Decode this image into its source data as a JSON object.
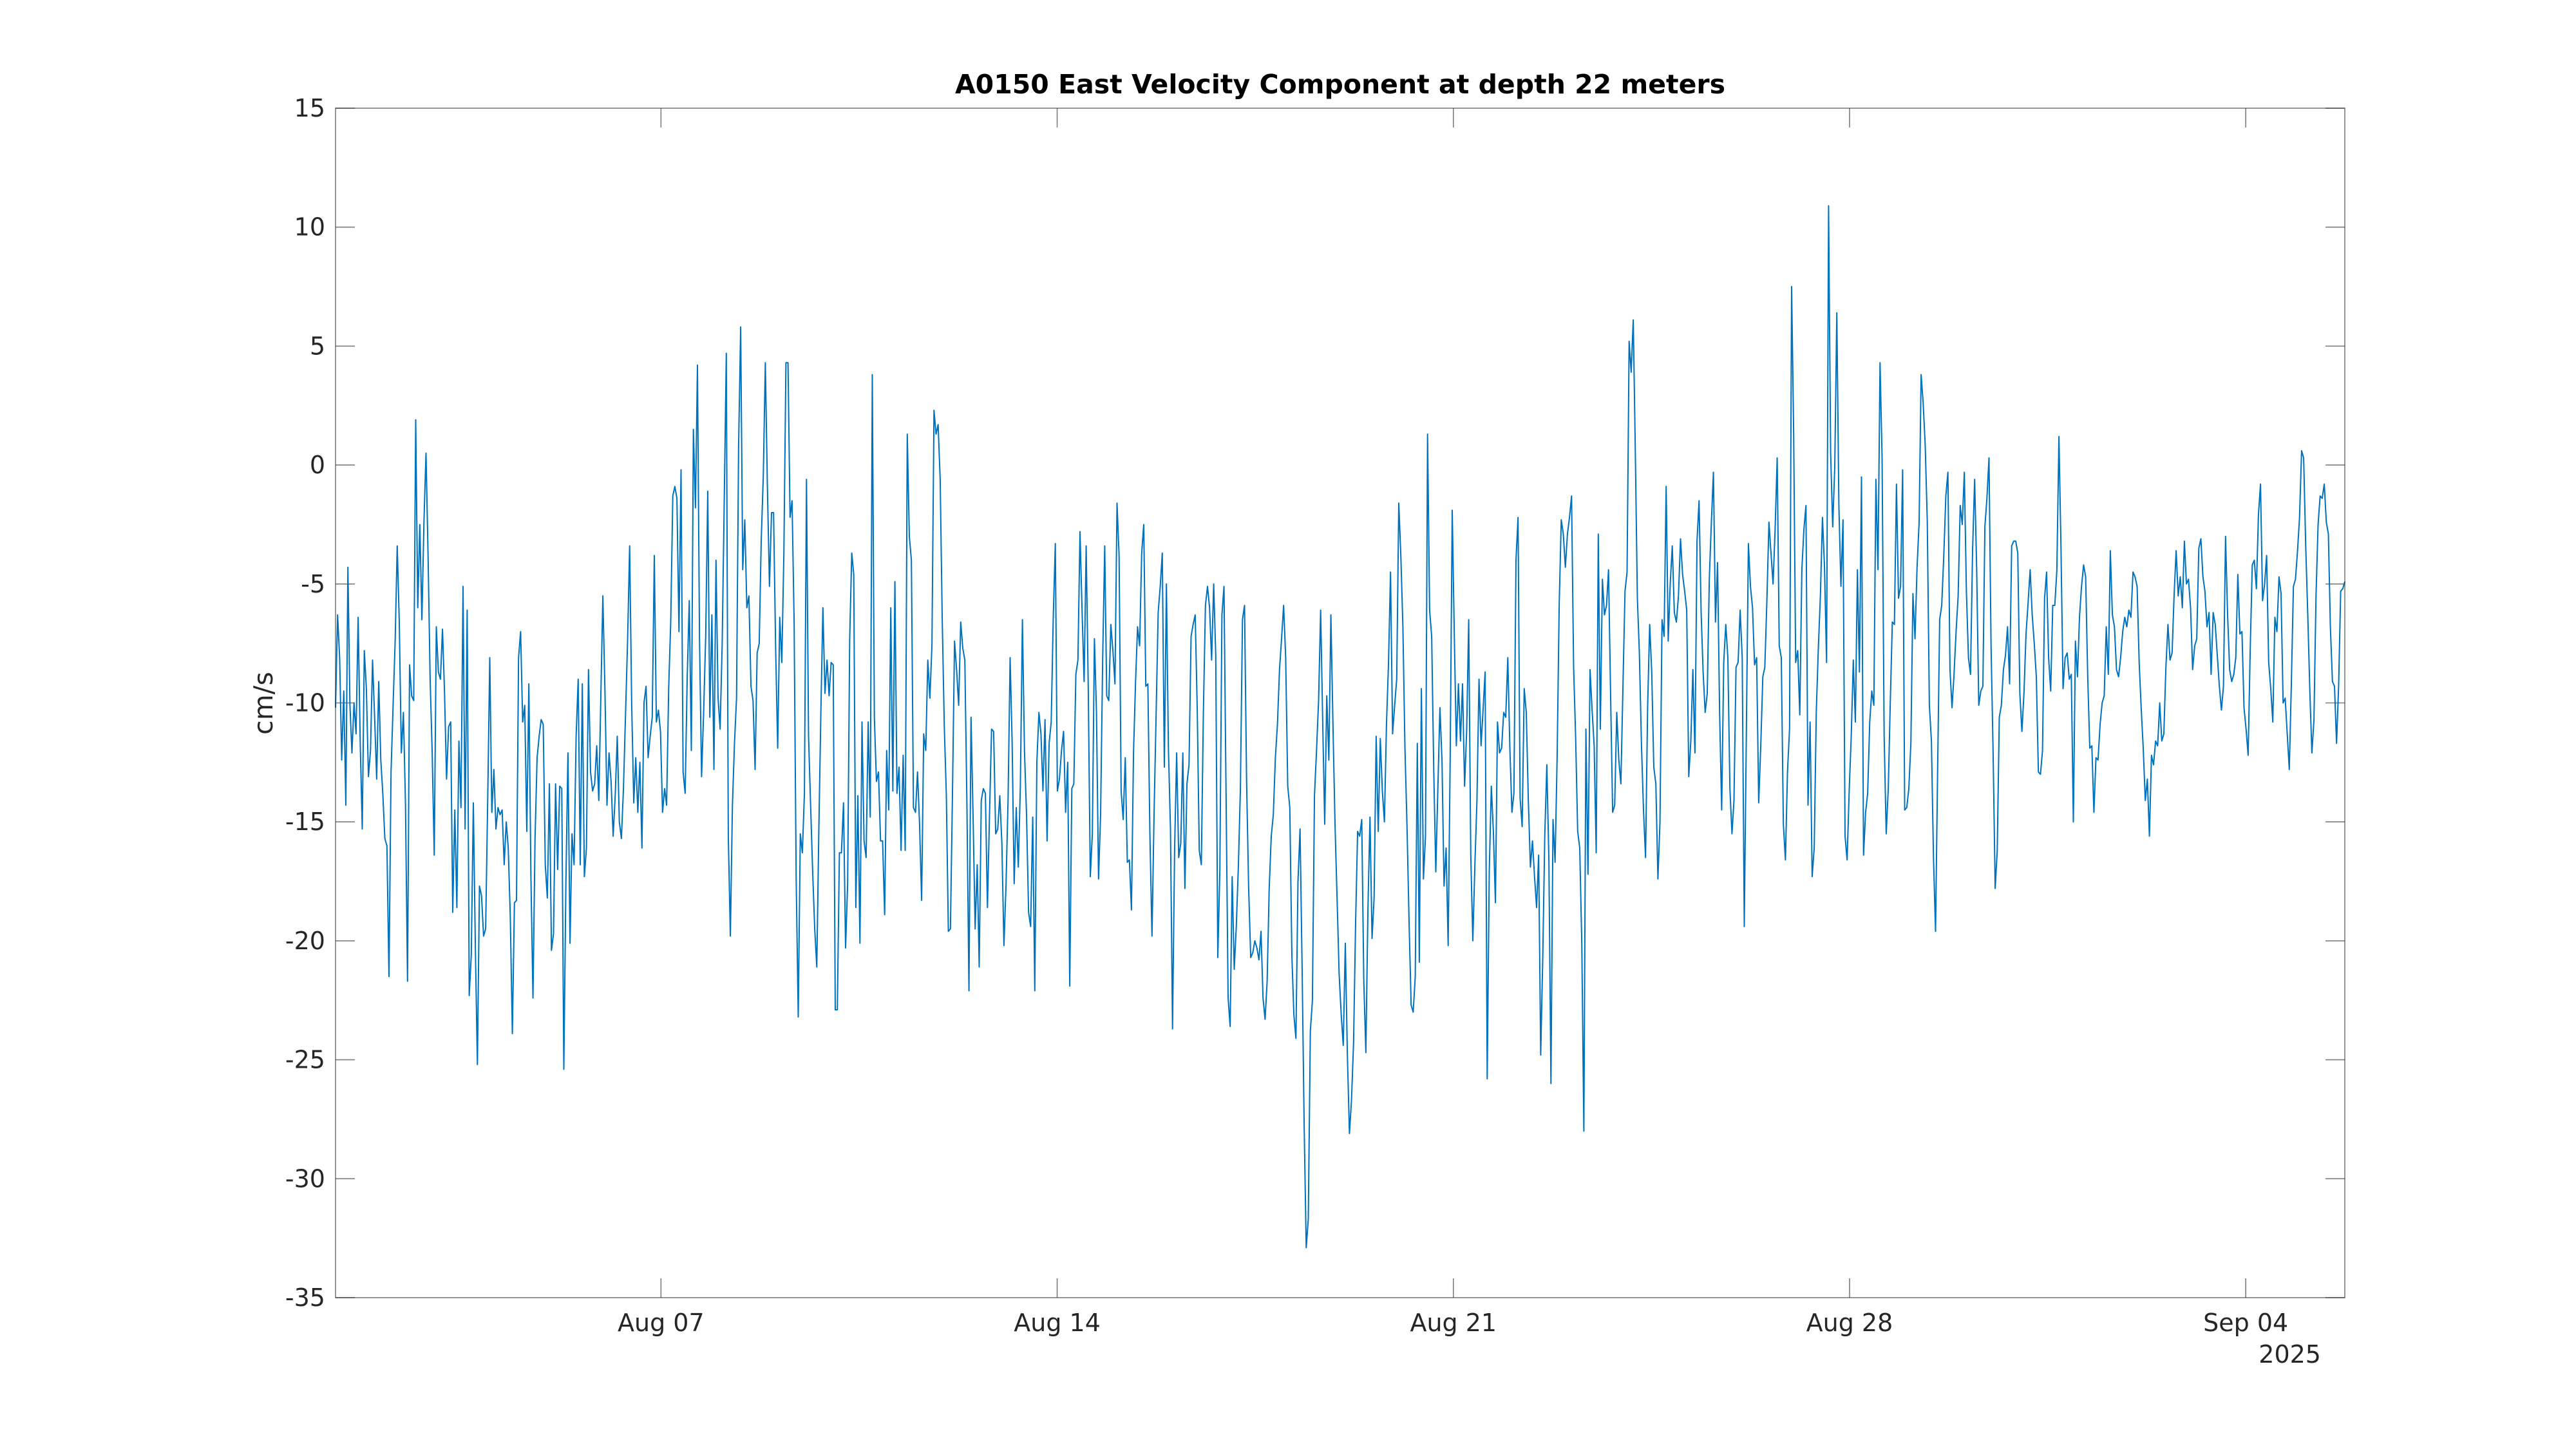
{
  "chart_data": {
    "type": "line",
    "title": "A0150 East Velocity Component at depth 22 meters",
    "xlabel": "",
    "ylabel": "cm/s",
    "x_start": "2025-08-01T06:00",
    "x_end": "2025-09-05T18:00",
    "xlim": [
      "2025-08-01T06:00",
      "2025-09-05T18:00"
    ],
    "ylim": [
      -35,
      15
    ],
    "x_ticks": [
      {
        "date": "2025-08-07",
        "label": "Aug 07"
      },
      {
        "date": "2025-08-14",
        "label": "Aug 14"
      },
      {
        "date": "2025-08-21",
        "label": "Aug 21"
      },
      {
        "date": "2025-08-28",
        "label": "Aug 28"
      },
      {
        "date": "2025-09-04",
        "label": "Sep 04"
      }
    ],
    "x_year_label": "2025",
    "y_ticks": [
      15,
      10,
      5,
      0,
      -5,
      -10,
      -15,
      -20,
      -25,
      -30,
      -35
    ],
    "y_tick_labels": [
      "15",
      "10",
      "5",
      "0",
      "-5",
      "-10",
      "-15",
      "-20",
      "-25",
      "-30",
      "-35"
    ],
    "grid": false,
    "line_color": "#0072bd",
    "series": [
      {
        "values": [
          -10.2,
          -6.3,
          -8.1,
          -12.4,
          -9.5,
          -14.3,
          -4.3,
          -10.1,
          -12.1,
          -10,
          -11.3,
          -6.4,
          -11.6,
          -15.3,
          -7.8,
          -9.4,
          -13.1,
          -12,
          -8.2,
          -10.6,
          -13.2,
          -9.1,
          -12.4,
          -13.8,
          -15.7,
          -16,
          -21.5,
          -12.9,
          -10.1,
          -7.4,
          -3.4,
          -6.6,
          -12.1,
          -10.4,
          -14.2,
          -21.7,
          -8.4,
          -9.7,
          -9.9,
          1.9,
          -6,
          -2.5,
          -6.5,
          -2.4,
          0.5,
          -3.8,
          -9,
          -12.1,
          -16.4,
          -6.8,
          -8.7,
          -9,
          -6.9,
          -9.6,
          -13.2,
          -11,
          -10.8,
          -18.8,
          -14.5,
          -18.6,
          -11.6,
          -14.4,
          -5.1,
          -15.3,
          -6.1,
          -22.3,
          -20.6,
          -14.2,
          -20.4,
          -25.2,
          -17.7,
          -18.1,
          -19.8,
          -19.5,
          -14.1,
          -8.1,
          -14.6,
          -12.8,
          -15.3,
          -14.4,
          -14.7,
          -14.5,
          -16.8,
          -15,
          -16.1,
          -19,
          -23.9,
          -18.4,
          -18.3,
          -8.1,
          -7,
          -10.8,
          -10.1,
          -15.4,
          -9.2,
          -17.3,
          -22.4,
          -15.7,
          -12.3,
          -11.4,
          -10.7,
          -10.9,
          -16.8,
          -18.2,
          -13.4,
          -20.4,
          -19.7,
          -13.4,
          -17,
          -13.5,
          -13.6,
          -25.4,
          -17.6,
          -12.1,
          -20.1,
          -15.5,
          -16.8,
          -11.4,
          -9,
          -16.8,
          -9.2,
          -17.3,
          -16.1,
          -8.6,
          -12.9,
          -13.7,
          -13.4,
          -11.8,
          -14.1,
          -9.7,
          -5.5,
          -9.4,
          -14.3,
          -12.1,
          -13.3,
          -15.6,
          -13.9,
          -11.4,
          -15,
          -15.7,
          -13.6,
          -10.5,
          -7.4,
          -3.4,
          -10.1,
          -14.2,
          -12.3,
          -14.6,
          -12.5,
          -16.1,
          -10,
          -9.3,
          -12.3,
          -11.4,
          -10.6,
          -3.8,
          -10.8,
          -10.3,
          -11.2,
          -14.6,
          -13.6,
          -14.3,
          -9.4,
          -6.6,
          -1.3,
          -0.9,
          -1.4,
          -7,
          -0.2,
          -12.9,
          -13.8,
          -8.9,
          -5.7,
          -12,
          1.5,
          -1.8,
          4.2,
          -7.3,
          -13.1,
          -10.4,
          -7.2,
          -1.1,
          -10.6,
          -6.3,
          -12.8,
          -4,
          -9.8,
          -11.1,
          -7.5,
          -1.5,
          4.7,
          -15.6,
          -19.8,
          -14.3,
          -11.7,
          -9.8,
          0.8,
          5.8,
          -4.4,
          -2.3,
          -6,
          -5.5,
          -9.3,
          -9.9,
          -12.8,
          -7.9,
          -7.5,
          -3.2,
          -0.5,
          4.3,
          -0.9,
          -5.1,
          -2,
          -2,
          -7.7,
          -11.9,
          -6.4,
          -8.3,
          -3.7,
          4.3,
          4.3,
          -2.2,
          -1.5,
          -6.6,
          -17.4,
          -23.2,
          -15.5,
          -16.3,
          -13.8,
          -0.6,
          -11.4,
          -14.3,
          -17.1,
          -19.5,
          -21.1,
          -15.3,
          -10.3,
          -6,
          -9.6,
          -8.2,
          -9.7,
          -8.3,
          -8.4,
          -22.9,
          -22.9,
          -16.3,
          -16.3,
          -14.2,
          -20.3,
          -17.6,
          -7.3,
          -3.7,
          -4.6,
          -18.6,
          -13.9,
          -20.1,
          -10.8,
          -15.8,
          -16.5,
          -10.8,
          -14.8,
          3.8,
          -10.6,
          -13.3,
          -12.9,
          -15.8,
          -15.8,
          -18.9,
          -12,
          -14.5,
          -6,
          -13.7,
          -4.9,
          -13.8,
          -12.7,
          -16.2,
          -12.2,
          -16.2,
          1.3,
          -3,
          -4,
          -14.4,
          -14.6,
          -12.9,
          -15.1,
          -18.3,
          -11.3,
          -12,
          -8.2,
          -9.8,
          -7.6,
          2.3,
          1.3,
          1.7,
          -0.6,
          -6.5,
          -11,
          -13.9,
          -19.6,
          -19.5,
          -13.8,
          -7.4,
          -8.6,
          -10.1,
          -6.6,
          -7.7,
          -8.2,
          -14.2,
          -22.1,
          -10.6,
          -14.8,
          -19.5,
          -16.8,
          -21.1,
          -14.1,
          -13.6,
          -13.8,
          -18.6,
          -14.7,
          -11.1,
          -11.2,
          -15.5,
          -15.3,
          -13.9,
          -15.9,
          -20.2,
          -17.7,
          -14.1,
          -8.1,
          -11.6,
          -17.6,
          -14.4,
          -16.9,
          -13.5,
          -6.5,
          -12,
          -14.7,
          -18.8,
          -19.4,
          -14.8,
          -22.1,
          -12.5,
          -10.4,
          -11.3,
          -13.7,
          -10.7,
          -15.8,
          -11.7,
          -10.8,
          -6.4,
          -3.3,
          -13.7,
          -13.2,
          -12,
          -11.2,
          -14.6,
          -12.5,
          -21.9,
          -13.6,
          -13.4,
          -8.8,
          -8.2,
          -2.8,
          -6.1,
          -9.1,
          -3.4,
          -9.3,
          -17.3,
          -15.5,
          -7.3,
          -10.4,
          -17.4,
          -14.7,
          -8.2,
          -3.4,
          -9.7,
          -9.9,
          -6.7,
          -7.8,
          -9.2,
          -1.6,
          -3.8,
          -13.7,
          -14.9,
          -12.3,
          -16.7,
          -16.6,
          -18.7,
          -12.1,
          -9.1,
          -6.8,
          -7.6,
          -3.7,
          -2.5,
          -9.3,
          -9.2,
          -15.6,
          -19.8,
          -14.7,
          -10.5,
          -6.2,
          -5.1,
          -3.7,
          -12.7,
          -5,
          -11.9,
          -15.3,
          -23.7,
          -16.2,
          -12.1,
          -16.5,
          -15.9,
          -12.1,
          -17.8,
          -13.4,
          -12.6,
          -7.2,
          -6.7,
          -6.3,
          -10.3,
          -16.2,
          -16.8,
          -10.4,
          -5.9,
          -5.1,
          -6,
          -8.2,
          -5,
          -8,
          -20.7,
          -17,
          -6.3,
          -5.1,
          -13.8,
          -22.4,
          -23.6,
          -17.3,
          -21.2,
          -19.4,
          -16.9,
          -13.6,
          -6.5,
          -5.9,
          -13.3,
          -17.8,
          -20.7,
          -20.5,
          -20,
          -20.3,
          -20.8,
          -19.6,
          -22.4,
          -23.3,
          -21.7,
          -17.8,
          -15.6,
          -14.7,
          -12.3,
          -10.9,
          -8.6,
          -7.3,
          -5.9,
          -8.1,
          -13.5,
          -14.4,
          -20.6,
          -23.1,
          -24.1,
          -17.5,
          -15.3,
          -21.1,
          -27.8,
          -32.9,
          -31.7,
          -23.8,
          -22.5,
          -13.9,
          -12,
          -9.9,
          -6.1,
          -10.8,
          -15.1,
          -9.7,
          -12.4,
          -6.3,
          -10.9,
          -15.1,
          -18.2,
          -21.4,
          -23.1,
          -24.4,
          -20.1,
          -24.8,
          -28.1,
          -26.7,
          -24.3,
          -19.2,
          -15.4,
          -15.6,
          -14.9,
          -21.7,
          -24.7,
          -18.7,
          -14.8,
          -19.9,
          -18.2,
          -11.4,
          -15.4,
          -11.5,
          -13.7,
          -15,
          -10.9,
          -8.4,
          -4.5,
          -11.3,
          -10.1,
          -9,
          -1.6,
          -3.8,
          -6.8,
          -11.9,
          -15.2,
          -19.2,
          -22.7,
          -23,
          -21.5,
          -11.7,
          -20.9,
          -9.4,
          -17.4,
          -15.6,
          1.3,
          -6.1,
          -7.2,
          -12.8,
          -17.1,
          -13.6,
          -10.2,
          -12.4,
          -17.7,
          -16.1,
          -20.2,
          -12.4,
          -1.9,
          -7.1,
          -11.8,
          -9.2,
          -11.6,
          -9.2,
          -13.5,
          -11.2,
          -6.5,
          -16.4,
          -20,
          -16.8,
          -14.1,
          -9,
          -11.8,
          -10.3,
          -8.7,
          -25.8,
          -17.1,
          -13.5,
          -15.4,
          -18.4,
          -10.8,
          -12.1,
          -11.9,
          -10.4,
          -10.6,
          -8.1,
          -11.9,
          -14.6,
          -13.8,
          -4,
          -2.2,
          -14,
          -15.2,
          -9.4,
          -10.4,
          -14.1,
          -16.9,
          -15.8,
          -17.3,
          -18.6,
          -16.4,
          -24.8,
          -20.7,
          -15.6,
          -12.6,
          -16.6,
          -26,
          -14.9,
          -16.7,
          -12.3,
          -5.9,
          -2.3,
          -2.9,
          -4.3,
          -2.9,
          -2.2,
          -1.3,
          -8.5,
          -11.4,
          -15.4,
          -16.1,
          -20.1,
          -28,
          -11.1,
          -17.2,
          -8.6,
          -10.3,
          -11.8,
          -16.3,
          -2.9,
          -11.1,
          -4.8,
          -6.3,
          -5.9,
          -4.4,
          -9.6,
          -14.6,
          -14.3,
          -10.4,
          -12.4,
          -13.4,
          -9.3,
          -5.3,
          -4.5,
          5.2,
          3.9,
          6.1,
          0.6,
          -5.6,
          -7.9,
          -11.7,
          -14.5,
          -16.5,
          -10.2,
          -6.7,
          -8.7,
          -12.7,
          -13.4,
          -17.4,
          -15,
          -6.5,
          -7.2,
          -0.9,
          -7.4,
          -5,
          -3.4,
          -6.2,
          -6.6,
          -5.5,
          -3.1,
          -4.6,
          -5.3,
          -6.1,
          -13.1,
          -11.6,
          -8.6,
          -12.1,
          -3.2,
          -1.5,
          -6.2,
          -8.7,
          -10.4,
          -9.6,
          -4.8,
          -2.4,
          -0.3,
          -6.6,
          -4.1,
          -10.4,
          -14.5,
          -8.3,
          -6.7,
          -8.1,
          -13.6,
          -15.5,
          -14.1,
          -8.5,
          -8.3,
          -6.1,
          -8.1,
          -19.4,
          -11.3,
          -3.3,
          -5.1,
          -6,
          -8.4,
          -8.1,
          -14.2,
          -11.8,
          -8.9,
          -8.5,
          -5.7,
          -2.4,
          -3.7,
          -5,
          -2.7,
          0.3,
          -7.6,
          -8.1,
          -15.1,
          -16.6,
          -12.9,
          -11.1,
          7.5,
          1.3,
          -8.3,
          -7.8,
          -10.5,
          -4.4,
          -2.7,
          -1.7,
          -14.3,
          -10.8,
          -17.3,
          -16.1,
          -10.4,
          -7.7,
          -5.5,
          -2.2,
          -4.3,
          -8.3,
          10.9,
          0.5,
          -2.6,
          -0.1,
          6.4,
          -1.7,
          -5.1,
          -2.3,
          -15.6,
          -16.6,
          -13.7,
          -11.4,
          -8.2,
          -10.8,
          -4.4,
          -8.7,
          -0.5,
          -16.4,
          -14.6,
          -13.8,
          -10.8,
          -9.5,
          -10.1,
          -0.6,
          -4.4,
          4.3,
          0.3,
          -11.4,
          -15.5,
          -13.6,
          -10,
          -6.6,
          -6.7,
          -0.8,
          -5.6,
          -5.1,
          -0.2,
          -14.5,
          -14.4,
          -13.6,
          -11.7,
          -5.4,
          -7.3,
          -4.3,
          -2.4,
          3.8,
          2.6,
          0.8,
          -2.4,
          -10.1,
          -11.6,
          -16.5,
          -19.6,
          -12.9,
          -6.5,
          -5.9,
          -3.8,
          -1.3,
          -0.3,
          -8.6,
          -10.2,
          -8.8,
          -7,
          -5.5,
          -1.7,
          -2.5,
          -0.3,
          -5.3,
          -8.1,
          -8.8,
          -3.6,
          -0.6,
          -4.4,
          -10.1,
          -9.5,
          -9.3,
          -2.6,
          -1.4,
          0.3,
          -7.6,
          -12.1,
          -17.8,
          -16.2,
          -10.6,
          -10.1,
          -8.6,
          -8,
          -6.8,
          -9.2,
          -3.4,
          -3.2,
          -3.2,
          -3.7,
          -9.6,
          -11.2,
          -9.6,
          -7.1,
          -5.8,
          -4.4,
          -6.3,
          -7.5,
          -8.9,
          -12.9,
          -13,
          -12,
          -5.6,
          -4.5,
          -8.1,
          -9.5,
          -5.9,
          -5.9,
          -4.4,
          1.2,
          -3.5,
          -9.4,
          -8.1,
          -7.9,
          -9,
          -8.8,
          -15,
          -7.4,
          -8.9,
          -6.4,
          -5.1,
          -4.2,
          -4.7,
          -8.9,
          -11.9,
          -11.8,
          -14.6,
          -12.3,
          -12.4,
          -10.9,
          -10,
          -9.7,
          -6.8,
          -8.8,
          -3.6,
          -6.3,
          -6.8,
          -8.6,
          -8.9,
          -8.1,
          -7,
          -6.4,
          -6.8,
          -6.1,
          -6.4,
          -4.5,
          -4.7,
          -5.1,
          -8.3,
          -10.2,
          -11.9,
          -14.1,
          -13.2,
          -15.6,
          -12.2,
          -12.6,
          -11.6,
          -11.8,
          -10,
          -11.6,
          -11.3,
          -8.5,
          -6.7,
          -8.2,
          -7.9,
          -5.5,
          -3.6,
          -5.5,
          -4.7,
          -6,
          -3.2,
          -5,
          -4.8,
          -6,
          -8.6,
          -7.6,
          -7.3,
          -3.5,
          -3.1,
          -4.7,
          -5.3,
          -6.8,
          -6.2,
          -8.8,
          -6.2,
          -6.7,
          -8,
          -9.3,
          -10.3,
          -9.3,
          -3,
          -6.3,
          -8.6,
          -9.1,
          -8.8,
          -8.1,
          -4.6,
          -7.1,
          -7,
          -10.2,
          -11.1,
          -12.2,
          -7.8,
          -4.2,
          -4,
          -5.2,
          -2.1,
          -0.8,
          -5.7,
          -5,
          -3.8,
          -8.3,
          -9.4,
          -10.8,
          -6.4,
          -7,
          -4.7,
          -5.4,
          -10,
          -9.8,
          -11.3,
          -12.8,
          -9.2,
          -5.1,
          -4.8,
          -3.6,
          -2.2,
          0.6,
          0.3,
          -3.4,
          -6.3,
          -9.5,
          -12.1,
          -10.7,
          -5.5,
          -2.5,
          -1.3,
          -1.4,
          -0.8,
          -2.4,
          -2.9,
          -6.8,
          -9.1,
          -9.3,
          -11.7,
          -9.3,
          -5.3,
          -5.2,
          -4.9
        ]
      }
    ]
  }
}
